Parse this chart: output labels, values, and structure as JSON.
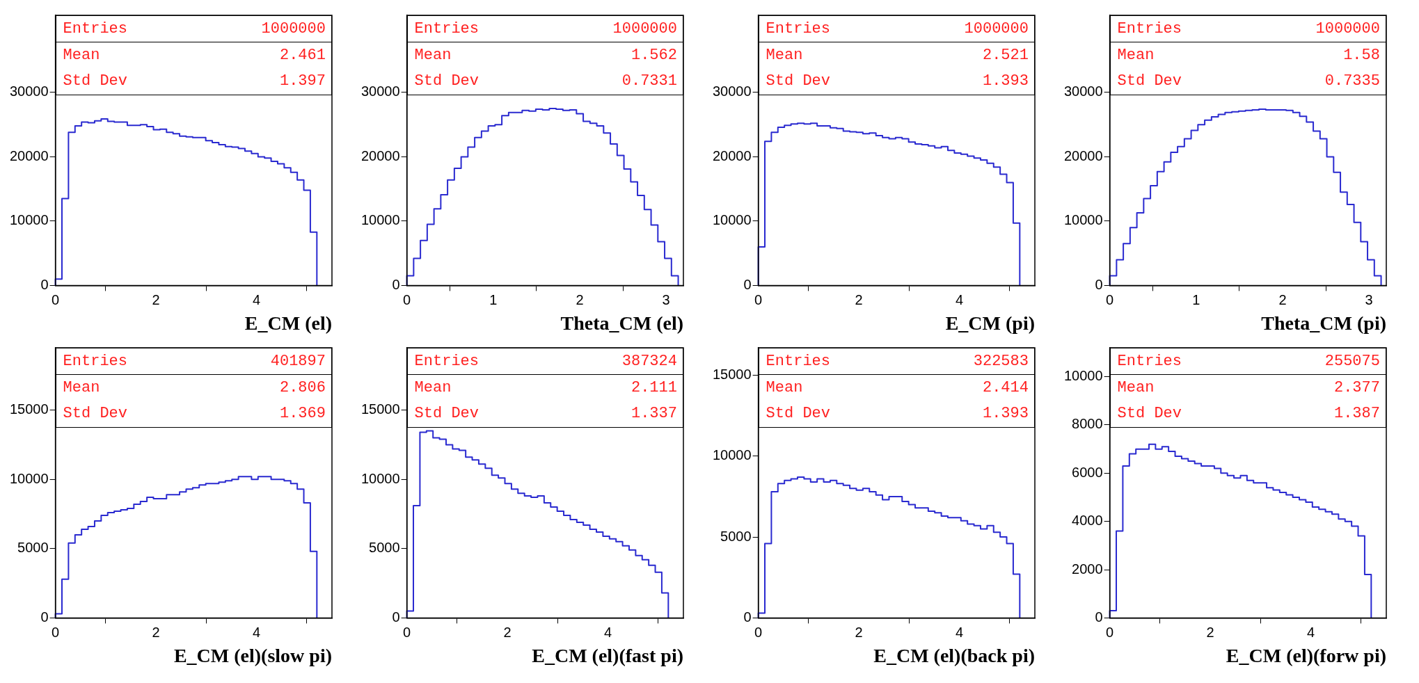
{
  "chart_data": [
    {
      "type": "histogram",
      "xlabel": "E_CM (el)",
      "color": "#2a2ad0",
      "xlim": [
        0,
        5.5
      ],
      "xticks": [
        0,
        2,
        4
      ],
      "ylim": [
        0,
        42000
      ],
      "yticks": [
        0,
        10000,
        20000,
        30000
      ],
      "annotations": [
        "Entries",
        "1000000",
        "Mean",
        "2.461",
        "Std Dev",
        "1.397"
      ],
      "bins": [
        0,
        0.13,
        0.26,
        0.39,
        0.52,
        0.65,
        0.78,
        0.91,
        1.04,
        1.17,
        1.3,
        1.43,
        1.56,
        1.69,
        1.82,
        1.95,
        2.08,
        2.21,
        2.34,
        2.47,
        2.6,
        2.73,
        2.86,
        2.99,
        3.12,
        3.25,
        3.38,
        3.51,
        3.64,
        3.77,
        3.9,
        4.03,
        4.16,
        4.29,
        4.42,
        4.55,
        4.68,
        4.81,
        4.94,
        5.07,
        5.2
      ],
      "values": [
        1000,
        13500,
        23800,
        24800,
        25400,
        25300,
        25600,
        25900,
        25500,
        25400,
        25400,
        24900,
        24900,
        25000,
        24700,
        24200,
        24300,
        23800,
        23600,
        23200,
        23100,
        23000,
        23000,
        22500,
        22200,
        21900,
        21600,
        21500,
        21300,
        20900,
        20500,
        20000,
        19800,
        19300,
        18900,
        18300,
        17600,
        16400,
        14800,
        8300
      ]
    },
    {
      "type": "histogram",
      "xlabel": "Theta_CM (el)",
      "color": "#2a2ad0",
      "xlim": [
        0,
        3.2
      ],
      "xticks": [
        0,
        1,
        2,
        3
      ],
      "ylim": [
        0,
        42000
      ],
      "yticks": [
        0,
        10000,
        20000,
        30000
      ],
      "annotations": [
        "Entries",
        "1000000",
        "Mean",
        "1.562",
        "Std Dev",
        "0.7331"
      ],
      "bins": [
        0,
        0.0785,
        0.157,
        0.2355,
        0.314,
        0.3925,
        0.471,
        0.5495,
        0.628,
        0.7065,
        0.785,
        0.8635,
        0.942,
        1.0205,
        1.099,
        1.1775,
        1.256,
        1.3345,
        1.413,
        1.4915,
        1.57,
        1.6485,
        1.727,
        1.8055,
        1.884,
        1.9625,
        2.041,
        2.1195,
        2.198,
        2.2765,
        2.355,
        2.4335,
        2.512,
        2.5905,
        2.669,
        2.7475,
        2.826,
        2.9045,
        2.983,
        3.0615,
        3.14
      ],
      "values": [
        1500,
        4200,
        7000,
        9500,
        11900,
        14100,
        16400,
        18200,
        20000,
        21500,
        23000,
        24000,
        24800,
        25000,
        26400,
        26900,
        26900,
        27200,
        27100,
        27400,
        27300,
        27500,
        27400,
        27200,
        27300,
        26700,
        25500,
        25200,
        24800,
        23700,
        22000,
        20200,
        18100,
        16100,
        14000,
        11800,
        9400,
        6800,
        4200,
        1500
      ]
    },
    {
      "type": "histogram",
      "xlabel": "E_CM (pi)",
      "color": "#2a2ad0",
      "xlim": [
        0,
        5.5
      ],
      "xticks": [
        0,
        2,
        4
      ],
      "ylim": [
        0,
        42000
      ],
      "yticks": [
        0,
        10000,
        20000,
        30000
      ],
      "annotations": [
        "Entries",
        "1000000",
        "Mean",
        "2.521",
        "Std Dev",
        "1.393"
      ],
      "bins": [
        0,
        0.13,
        0.26,
        0.39,
        0.52,
        0.65,
        0.78,
        0.91,
        1.04,
        1.17,
        1.3,
        1.43,
        1.56,
        1.69,
        1.82,
        1.95,
        2.08,
        2.21,
        2.34,
        2.47,
        2.6,
        2.73,
        2.86,
        2.99,
        3.12,
        3.25,
        3.38,
        3.51,
        3.64,
        3.77,
        3.9,
        4.03,
        4.16,
        4.29,
        4.42,
        4.55,
        4.68,
        4.81,
        4.94,
        5.07,
        5.2
      ],
      "values": [
        6000,
        22400,
        23800,
        24600,
        24900,
        25100,
        25200,
        25100,
        25200,
        24800,
        24800,
        24500,
        24400,
        24000,
        23900,
        23800,
        23600,
        23700,
        23300,
        23000,
        22800,
        23000,
        22800,
        22300,
        22000,
        21900,
        21700,
        21400,
        21600,
        21000,
        20600,
        20400,
        20100,
        19800,
        19500,
        19000,
        18400,
        17300,
        16000,
        9700
      ]
    },
    {
      "type": "histogram",
      "xlabel": "Theta_CM (pi)",
      "color": "#2a2ad0",
      "xlim": [
        0,
        3.2
      ],
      "xticks": [
        0,
        1,
        2,
        3
      ],
      "ylim": [
        0,
        42000
      ],
      "yticks": [
        0,
        10000,
        20000,
        30000
      ],
      "annotations": [
        "Entries",
        "1000000",
        "Mean",
        "1.58",
        "Std Dev",
        "0.7335"
      ],
      "bins": [
        0,
        0.0785,
        0.157,
        0.2355,
        0.314,
        0.3925,
        0.471,
        0.5495,
        0.628,
        0.7065,
        0.785,
        0.8635,
        0.942,
        1.0205,
        1.099,
        1.1775,
        1.256,
        1.3345,
        1.413,
        1.4915,
        1.57,
        1.6485,
        1.727,
        1.8055,
        1.884,
        1.9625,
        2.041,
        2.1195,
        2.198,
        2.2765,
        2.355,
        2.4335,
        2.512,
        2.5905,
        2.669,
        2.7475,
        2.826,
        2.9045,
        2.983,
        3.0615,
        3.14
      ],
      "values": [
        1500,
        4000,
        6500,
        9000,
        11300,
        13500,
        15500,
        17700,
        19200,
        20700,
        21600,
        22800,
        24100,
        25000,
        25700,
        26200,
        26600,
        26900,
        27000,
        27100,
        27200,
        27300,
        27400,
        27300,
        27300,
        27300,
        27200,
        26900,
        26300,
        25400,
        24000,
        22800,
        20000,
        17600,
        14500,
        12600,
        9800,
        6800,
        4000,
        1500
      ]
    },
    {
      "type": "histogram",
      "xlabel": "E_CM (el)(slow pi)",
      "color": "#2a2ad0",
      "xlim": [
        0,
        5.5
      ],
      "xticks": [
        0,
        2,
        4
      ],
      "ylim": [
        0,
        19500
      ],
      "yticks": [
        0,
        5000,
        10000,
        15000
      ],
      "annotations": [
        "Entries",
        "401897",
        "Mean",
        "2.806",
        "Std Dev",
        "1.369"
      ],
      "bins": [
        0,
        0.13,
        0.26,
        0.39,
        0.52,
        0.65,
        0.78,
        0.91,
        1.04,
        1.17,
        1.3,
        1.43,
        1.56,
        1.69,
        1.82,
        1.95,
        2.08,
        2.21,
        2.34,
        2.47,
        2.6,
        2.73,
        2.86,
        2.99,
        3.12,
        3.25,
        3.38,
        3.51,
        3.64,
        3.77,
        3.9,
        4.03,
        4.16,
        4.29,
        4.42,
        4.55,
        4.68,
        4.81,
        4.94,
        5.07,
        5.2
      ],
      "values": [
        300,
        2800,
        5400,
        6000,
        6400,
        6600,
        7000,
        7400,
        7600,
        7700,
        7800,
        7900,
        8200,
        8400,
        8700,
        8600,
        8600,
        8900,
        8900,
        9100,
        9300,
        9400,
        9600,
        9700,
        9700,
        9800,
        9900,
        10000,
        10200,
        10200,
        10000,
        10200,
        10200,
        10000,
        10000,
        9900,
        9700,
        9300,
        8300,
        4800
      ]
    },
    {
      "type": "histogram",
      "xlabel": "E_CM (el)(fast pi)",
      "color": "#2a2ad0",
      "xlim": [
        0,
        5.5
      ],
      "xticks": [
        0,
        2,
        4
      ],
      "ylim": [
        0,
        19500
      ],
      "yticks": [
        0,
        5000,
        10000,
        15000
      ],
      "annotations": [
        "Entries",
        "387324",
        "Mean",
        "2.111",
        "Std Dev",
        "1.337"
      ],
      "bins": [
        0,
        0.13,
        0.26,
        0.39,
        0.52,
        0.65,
        0.78,
        0.91,
        1.04,
        1.17,
        1.3,
        1.43,
        1.56,
        1.69,
        1.82,
        1.95,
        2.08,
        2.21,
        2.34,
        2.47,
        2.6,
        2.73,
        2.86,
        2.99,
        3.12,
        3.25,
        3.38,
        3.51,
        3.64,
        3.77,
        3.9,
        4.03,
        4.16,
        4.29,
        4.42,
        4.55,
        4.68,
        4.81,
        4.94,
        5.07,
        5.2
      ],
      "values": [
        500,
        8100,
        13400,
        13500,
        13000,
        12900,
        12500,
        12200,
        12100,
        11600,
        11400,
        11100,
        10800,
        10300,
        10100,
        9700,
        9300,
        9000,
        8800,
        8700,
        8800,
        8300,
        8000,
        7700,
        7400,
        7100,
        6900,
        6700,
        6400,
        6200,
        5900,
        5700,
        5500,
        5200,
        4900,
        4500,
        4200,
        3800,
        3300,
        1800
      ]
    },
    {
      "type": "histogram",
      "xlabel": "E_CM (el)(back pi)",
      "color": "#2a2ad0",
      "xlim": [
        0,
        5.5
      ],
      "xticks": [
        0,
        2,
        4
      ],
      "ylim": [
        0,
        16700
      ],
      "yticks": [
        0,
        5000,
        10000,
        15000
      ],
      "annotations": [
        "Entries",
        "322583",
        "Mean",
        "2.414",
        "Std Dev",
        "1.393"
      ],
      "bins": [
        0,
        0.13,
        0.26,
        0.39,
        0.52,
        0.65,
        0.78,
        0.91,
        1.04,
        1.17,
        1.3,
        1.43,
        1.56,
        1.69,
        1.82,
        1.95,
        2.08,
        2.21,
        2.34,
        2.47,
        2.6,
        2.73,
        2.86,
        2.99,
        3.12,
        3.25,
        3.38,
        3.51,
        3.64,
        3.77,
        3.9,
        4.03,
        4.16,
        4.29,
        4.42,
        4.55,
        4.68,
        4.81,
        4.94,
        5.07,
        5.2
      ],
      "values": [
        300,
        4600,
        7800,
        8300,
        8500,
        8600,
        8700,
        8600,
        8400,
        8600,
        8400,
        8500,
        8300,
        8200,
        8000,
        7900,
        8000,
        7800,
        7600,
        7300,
        7500,
        7500,
        7200,
        7000,
        6800,
        6800,
        6600,
        6500,
        6300,
        6200,
        6200,
        6000,
        5800,
        5700,
        5500,
        5700,
        5300,
        5000,
        4600,
        2700
      ]
    },
    {
      "type": "histogram",
      "xlabel": "E_CM (el)(forw pi)",
      "color": "#2a2ad0",
      "xlim": [
        0,
        5.5
      ],
      "xticks": [
        0,
        2,
        4
      ],
      "ylim": [
        0,
        11200
      ],
      "yticks": [
        0,
        2000,
        4000,
        6000,
        8000,
        10000
      ],
      "annotations": [
        "Entries",
        "255075",
        "Mean",
        "2.377",
        "Std Dev",
        "1.387"
      ],
      "bins": [
        0,
        0.13,
        0.26,
        0.39,
        0.52,
        0.65,
        0.78,
        0.91,
        1.04,
        1.17,
        1.3,
        1.43,
        1.56,
        1.69,
        1.82,
        1.95,
        2.08,
        2.21,
        2.34,
        2.47,
        2.6,
        2.73,
        2.86,
        2.99,
        3.12,
        3.25,
        3.38,
        3.51,
        3.64,
        3.77,
        3.9,
        4.03,
        4.16,
        4.29,
        4.42,
        4.55,
        4.68,
        4.81,
        4.94,
        5.07,
        5.2
      ],
      "values": [
        300,
        3600,
        6300,
        6800,
        7000,
        7000,
        7200,
        7000,
        7100,
        6900,
        6700,
        6600,
        6500,
        6400,
        6300,
        6300,
        6200,
        6000,
        5900,
        5800,
        5900,
        5700,
        5600,
        5600,
        5400,
        5300,
        5200,
        5100,
        5000,
        4900,
        4800,
        4600,
        4500,
        4400,
        4300,
        4100,
        4000,
        3800,
        3400,
        1800
      ]
    }
  ]
}
